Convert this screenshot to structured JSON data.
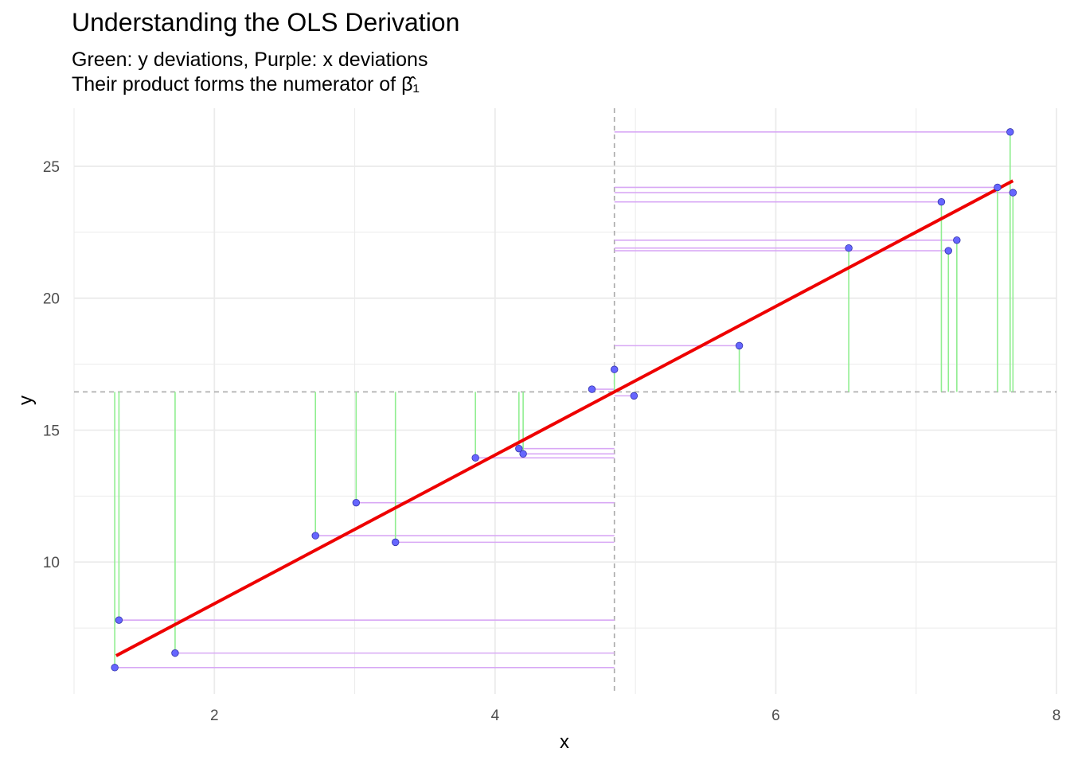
{
  "chart_data": {
    "type": "scatter",
    "title": "Understanding the OLS Derivation",
    "subtitle_line1": "Green: y deviations, Purple: x deviations",
    "subtitle_line2": "Their product forms the numerator of β̂₁",
    "xlabel": "x",
    "ylabel": "y",
    "xlim": [
      1.0,
      8.0
    ],
    "ylim": [
      5.0,
      27.2
    ],
    "x_major_ticks": [
      2,
      4,
      6,
      8
    ],
    "x_minor_ticks": [
      1,
      3,
      5,
      7
    ],
    "y_major_ticks": [
      10,
      15,
      20,
      25
    ],
    "y_minor_ticks": [
      7.5,
      12.5,
      17.5,
      22.5
    ],
    "x_mean": 4.85,
    "y_mean": 16.45,
    "regression_line": {
      "x_start": 1.3,
      "y_start": 6.45,
      "x_end": 7.69,
      "y_end": 24.45
    },
    "points": [
      {
        "x": 1.29,
        "y": 6.0
      },
      {
        "x": 1.32,
        "y": 7.8
      },
      {
        "x": 1.72,
        "y": 6.55
      },
      {
        "x": 2.72,
        "y": 11.0
      },
      {
        "x": 3.01,
        "y": 12.25
      },
      {
        "x": 3.29,
        "y": 10.75
      },
      {
        "x": 3.86,
        "y": 13.95
      },
      {
        "x": 4.17,
        "y": 14.3
      },
      {
        "x": 4.2,
        "y": 14.1
      },
      {
        "x": 4.69,
        "y": 16.55
      },
      {
        "x": 4.85,
        "y": 17.3
      },
      {
        "x": 4.99,
        "y": 16.3
      },
      {
        "x": 5.74,
        "y": 18.2
      },
      {
        "x": 6.52,
        "y": 21.9
      },
      {
        "x": 7.18,
        "y": 23.65
      },
      {
        "x": 7.23,
        "y": 21.8
      },
      {
        "x": 7.29,
        "y": 22.2
      },
      {
        "x": 7.58,
        "y": 24.2
      },
      {
        "x": 7.67,
        "y": 26.3
      },
      {
        "x": 7.69,
        "y": 24.0
      }
    ],
    "colors": {
      "point_fill": "#6666ff",
      "point_stroke": "#3333aa",
      "regression": "#ee0000",
      "y_deviation": "#90ee90",
      "x_deviation": "#d8a8f5",
      "mean_line": "#aaaaaa",
      "grid": "#ebebeb"
    }
  }
}
